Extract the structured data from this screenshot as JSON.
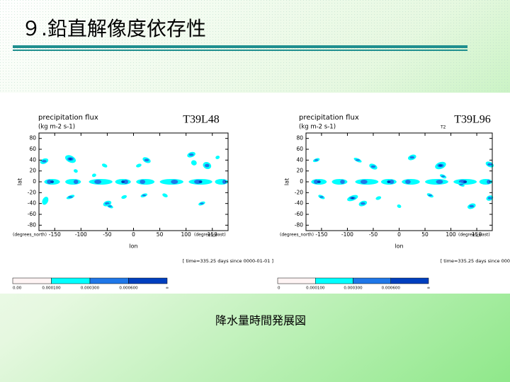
{
  "title": "９.鉛直解像度依存性",
  "panels": [
    {
      "plot_title": "precipitation flux",
      "units": "(kg m-2 s-1)",
      "label": "T39L48",
      "y_axis_label": "lat",
      "y_axis_unit": "(degrees_north)",
      "x_axis_label": "lon",
      "x_axis_unit": "(degrees_east)",
      "yticks": [
        "80",
        "60",
        "40",
        "20",
        "0",
        "-20",
        "-40",
        "-60",
        "-80"
      ],
      "xticks": [
        "-150",
        "-100",
        "-50",
        "0",
        "50",
        "100",
        "150"
      ],
      "note": "[ time=335.25 days since 0000-01-01 ]",
      "colorbar_labels": [
        "0.00",
        "0.000100",
        "0.000300",
        "0.000600",
        "∞"
      ]
    },
    {
      "plot_title": "precipitation flux",
      "units": "(kg m-2 s-1)",
      "label": "T39L96",
      "small_label": "T2",
      "y_axis_label": "lat",
      "y_axis_unit": "(degrees_north)",
      "x_axis_label": "lon",
      "x_axis_unit": "(degrees_east)",
      "yticks": [
        "80",
        "60",
        "40",
        "20",
        "0",
        "-20",
        "-40",
        "-60",
        "-80"
      ],
      "xticks": [
        "-150",
        "-100",
        "-50",
        "0",
        "50",
        "100",
        "150"
      ],
      "note": "[ time=335.25 days since 000",
      "colorbar_labels": [
        "0",
        "0.000100",
        "0.000300",
        "0.000600",
        "∞"
      ]
    }
  ],
  "caption": "降水量時間発展図"
}
